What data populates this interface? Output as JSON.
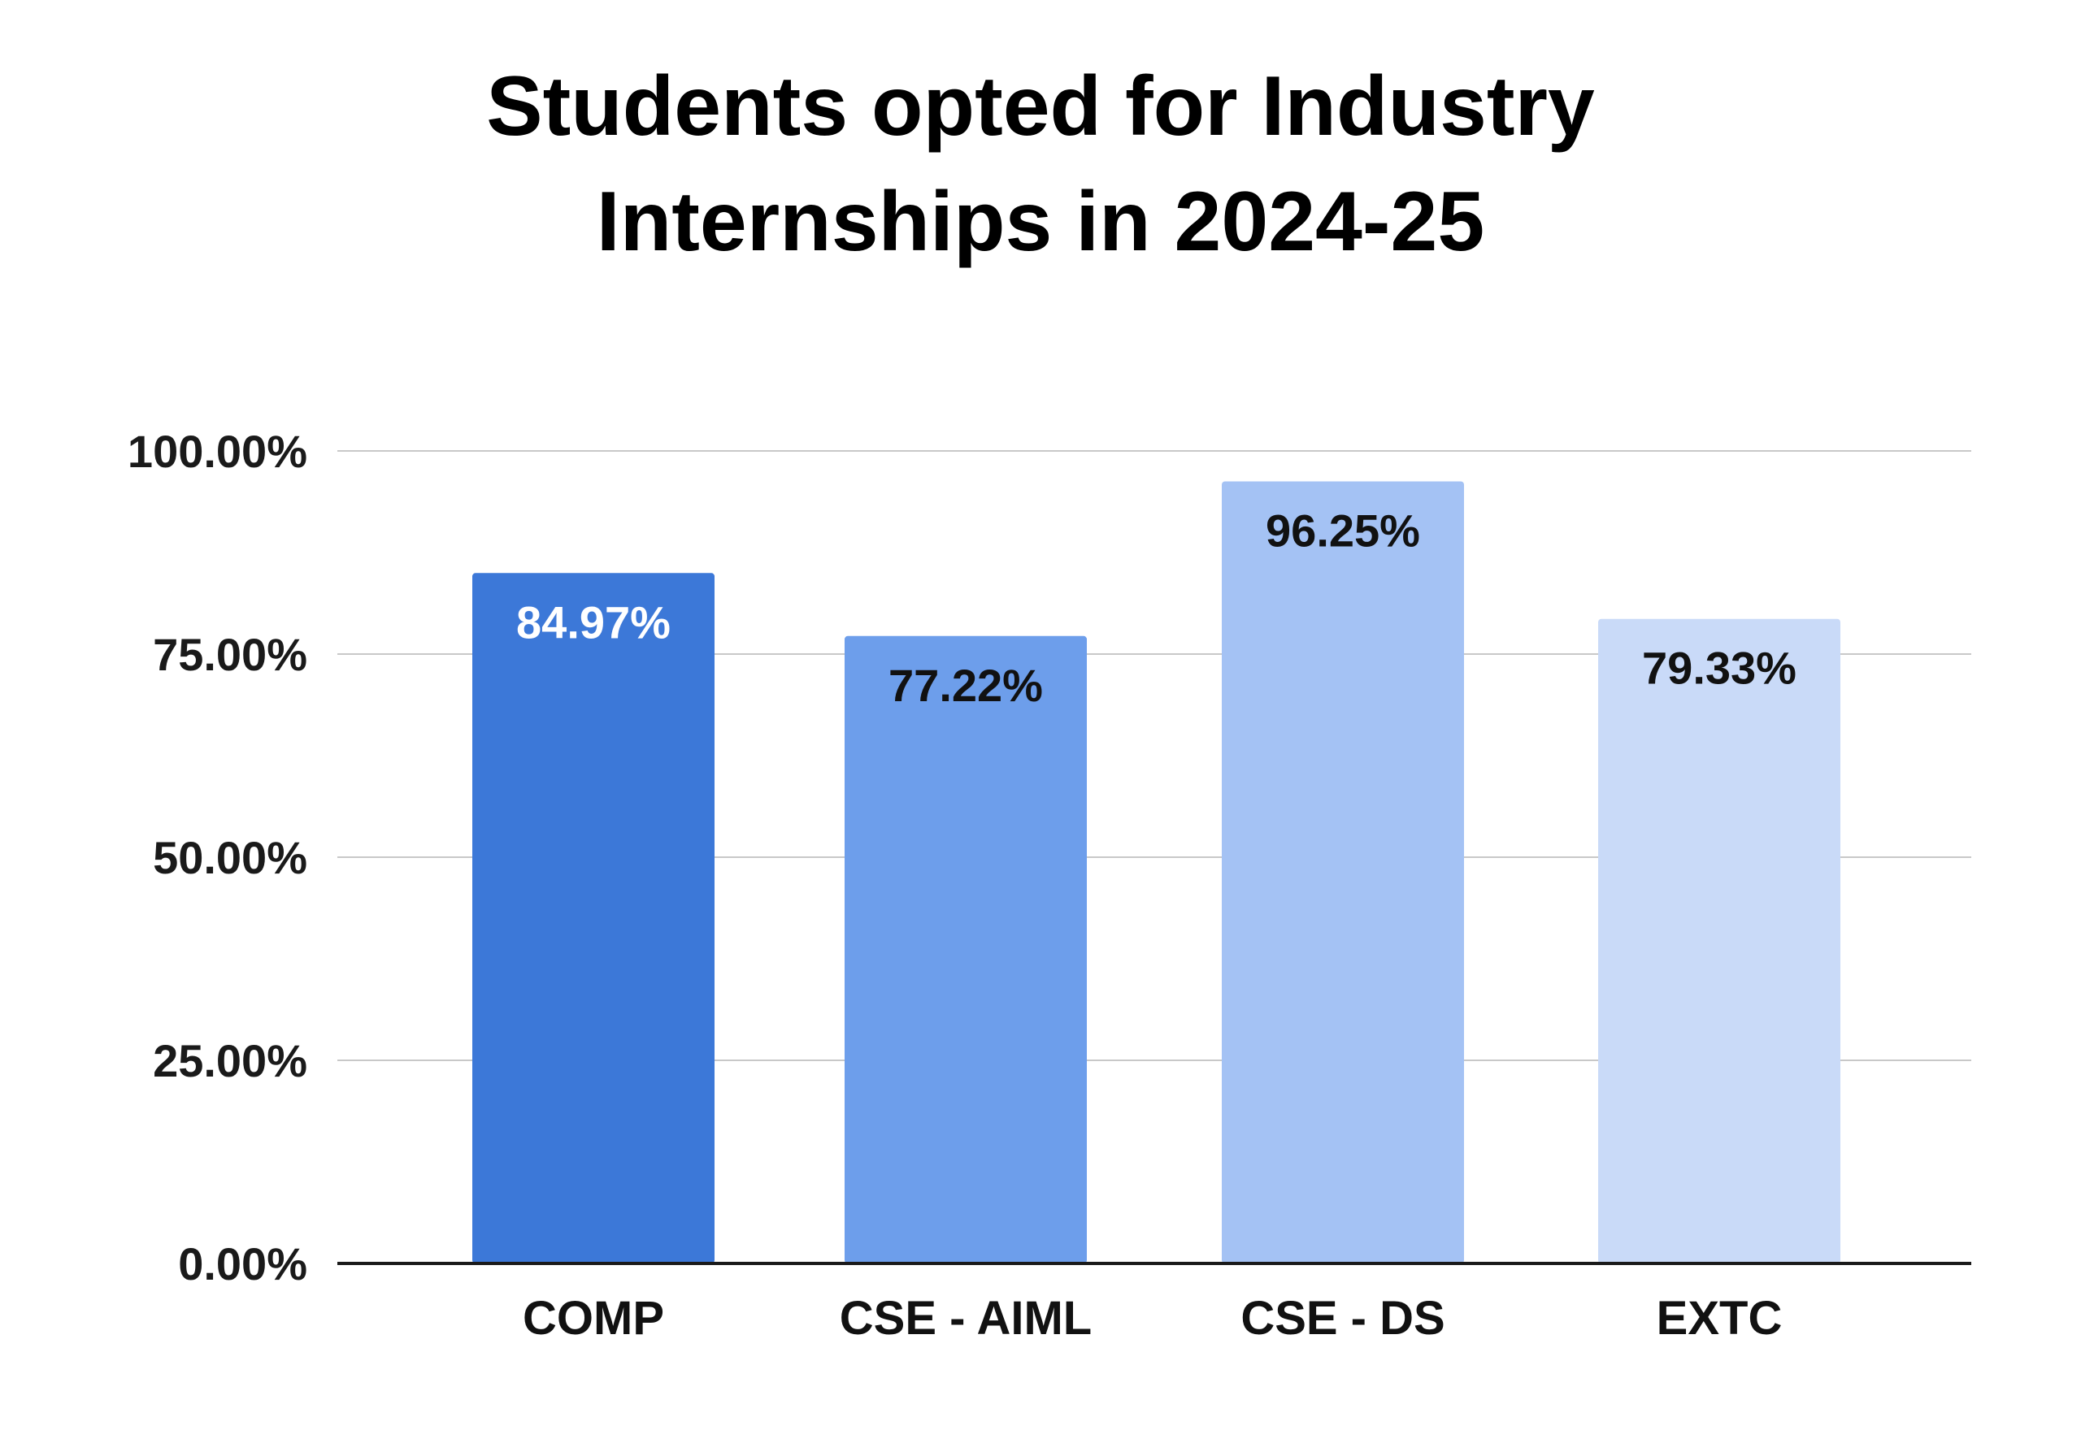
{
  "chart_data": {
    "type": "bar",
    "title_lines": [
      "Students opted for Industry",
      "Internships in 2024-25"
    ],
    "xlabel": "",
    "ylabel": "",
    "categories": [
      "COMP",
      "CSE - AIML",
      "CSE - DS",
      "EXTC"
    ],
    "values": [
      84.97,
      77.22,
      96.25,
      79.33
    ],
    "data_labels": [
      "84.97%",
      "77.22%",
      "96.25%",
      "79.33%"
    ],
    "ylim": [
      0,
      100
    ],
    "y_ticks": [
      0,
      25,
      50,
      75,
      100
    ],
    "y_tick_labels": [
      "0.00%",
      "25.00%",
      "50.00%",
      "75.00%",
      "100.00%"
    ],
    "bar_colors": [
      "#3c78d8",
      "#6d9eeb",
      "#a4c2f4",
      "#c9daf8"
    ],
    "label_colors": [
      "#ffffff",
      "#111111",
      "#111111",
      "#111111"
    ],
    "grid": true,
    "legend": "none"
  }
}
